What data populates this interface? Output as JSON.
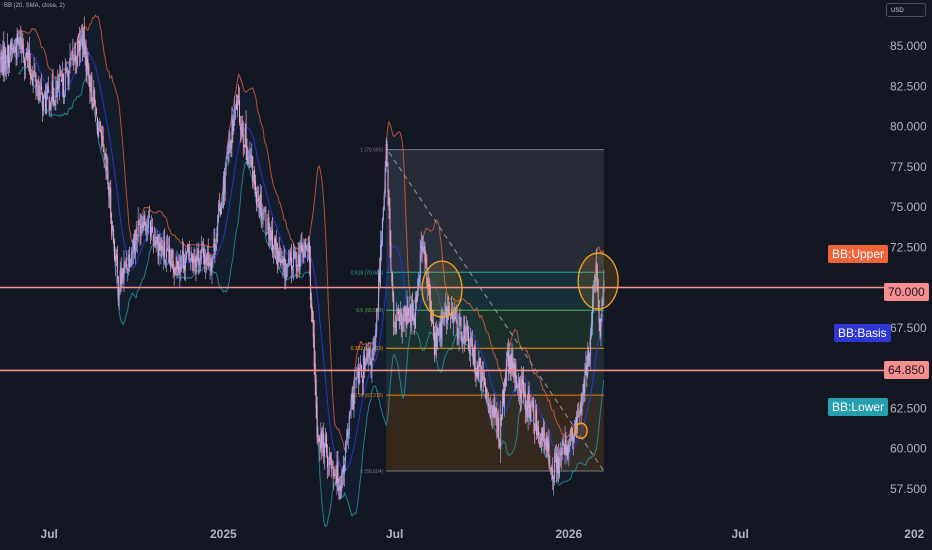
{
  "indicator": {
    "label": "BB (20, SMA, close, 2)"
  },
  "currency": "USD",
  "price_axis": {
    "ticks": [
      "85.000",
      "82.500",
      "80.000",
      "77.500",
      "75.000",
      "72.500",
      "70.000",
      "67.500",
      "65.000",
      "62.500",
      "60.000",
      "57.500"
    ]
  },
  "time_axis": {
    "ticks": [
      "Jul",
      "2025",
      "Jul",
      "2026",
      "Jul",
      "202"
    ]
  },
  "tags": {
    "bb_upper": "BB:Upper",
    "bb_basis": "BB:Basis",
    "bb_lower": "BB:Lower",
    "level_high": "70.000",
    "level_low": "64.850"
  },
  "colors": {
    "background": "#131722",
    "candle_up": "#9aa6f0",
    "candle_down": "#f5a3bf",
    "bb_upper": "#f0643c",
    "bb_basis": "#2e36d6",
    "bb_lower": "#26a0b0",
    "horizontal_line": "#f78f8f",
    "circle": "#f5a623"
  },
  "fib_labels": [
    "1 (78.565)",
    "0.618 (70.946)",
    "0.5 (68.589)",
    "0.382 (66.229)",
    "0.236 (63.315)",
    "0 (58.604)"
  ],
  "chart_data": {
    "type": "candlestick",
    "title": "",
    "ylim": [
      56.5,
      87.3
    ],
    "y_ticks": [
      85.0,
      82.5,
      80.0,
      77.5,
      75.0,
      72.5,
      70.0,
      67.5,
      65.0,
      62.5,
      60.0,
      57.5
    ],
    "x_tick_labels": [
      "Jul",
      "2025",
      "Jul",
      "2026",
      "Jul",
      "202"
    ],
    "horizontal_levels": [
      70.0,
      64.85
    ],
    "fibonacci": {
      "start_date": "2025-06-22",
      "end_date": "2026-02-07",
      "levels": [
        {
          "ratio": 1,
          "price": 78.565
        },
        {
          "ratio": 0.618,
          "price": 70.946
        },
        {
          "ratio": 0.5,
          "price": 68.589
        },
        {
          "ratio": 0.382,
          "price": 66.229
        },
        {
          "ratio": 0.236,
          "price": 63.315
        },
        {
          "ratio": 0,
          "price": 58.604
        }
      ]
    },
    "trendline": {
      "from": [
        "2025-06-25",
        78.4
      ],
      "to": [
        "2026-02-07",
        58.6
      ]
    },
    "circles": [
      {
        "date": "2025-08-20",
        "price": 69.9
      },
      {
        "date": "2026-01-14",
        "price": 61.1
      },
      {
        "date": "2026-02-01",
        "price": 70.4
      }
    ],
    "anchors": [
      {
        "date": "2024-05-10",
        "price": 84.0
      },
      {
        "date": "2024-06-01",
        "price": 85.2
      },
      {
        "date": "2024-06-25",
        "price": 81.5
      },
      {
        "date": "2024-07-15",
        "price": 82.5
      },
      {
        "date": "2024-08-05",
        "price": 85.5
      },
      {
        "date": "2024-09-01",
        "price": 76.5
      },
      {
        "date": "2024-09-12",
        "price": 70.0
      },
      {
        "date": "2024-10-08",
        "price": 74.5
      },
      {
        "date": "2024-11-05",
        "price": 71.5
      },
      {
        "date": "2024-12-01",
        "price": 72.0
      },
      {
        "date": "2024-12-20",
        "price": 71.8
      },
      {
        "date": "2025-01-15",
        "price": 81.5
      },
      {
        "date": "2025-02-05",
        "price": 76.0
      },
      {
        "date": "2025-03-05",
        "price": 71.0
      },
      {
        "date": "2025-04-01",
        "price": 72.5
      },
      {
        "date": "2025-04-10",
        "price": 61.0
      },
      {
        "date": "2025-05-05",
        "price": 57.9
      },
      {
        "date": "2025-05-20",
        "price": 64.0
      },
      {
        "date": "2025-06-10",
        "price": 66.0
      },
      {
        "date": "2025-06-22",
        "price": 78.5
      },
      {
        "date": "2025-06-30",
        "price": 67.5
      },
      {
        "date": "2025-07-22",
        "price": 68.5
      },
      {
        "date": "2025-07-30",
        "price": 73.0
      },
      {
        "date": "2025-08-12",
        "price": 66.5
      },
      {
        "date": "2025-08-25",
        "price": 68.5
      },
      {
        "date": "2025-09-15",
        "price": 67.0
      },
      {
        "date": "2025-10-20",
        "price": 61.0
      },
      {
        "date": "2025-10-28",
        "price": 65.5
      },
      {
        "date": "2025-11-25",
        "price": 62.0
      },
      {
        "date": "2025-12-16",
        "price": 58.8
      },
      {
        "date": "2026-01-08",
        "price": 61.0
      },
      {
        "date": "2026-01-20",
        "price": 64.8
      },
      {
        "date": "2026-01-30",
        "price": 71.0
      },
      {
        "date": "2026-02-03",
        "price": 67.3
      },
      {
        "date": "2026-02-07",
        "price": 69.8
      }
    ]
  }
}
